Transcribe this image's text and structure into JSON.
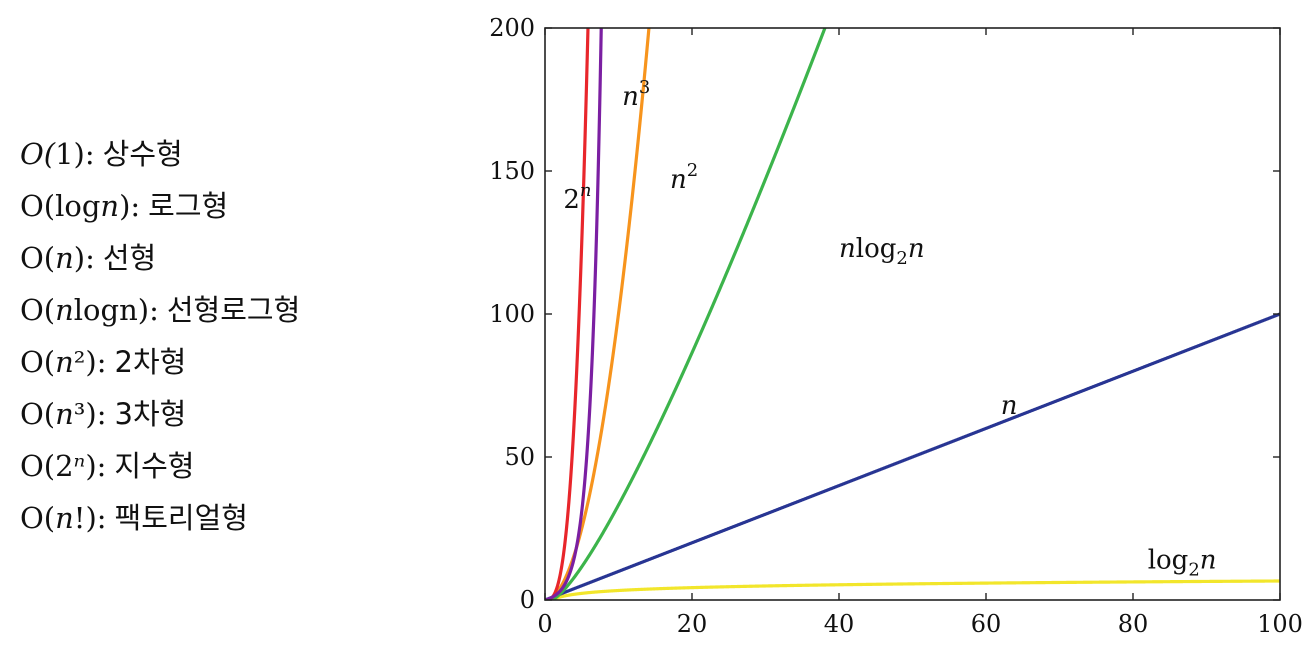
{
  "legend": {
    "items": [
      {
        "notation_prefix": "O(",
        "notation_var": "",
        "notation_rest": "1",
        "notation_suffix": "):",
        "desc": "상수형"
      },
      {
        "notation_prefix": "O(log",
        "notation_var": "n",
        "notation_rest": "",
        "notation_suffix": "):",
        "desc": "로그형"
      },
      {
        "notation_prefix": "O(",
        "notation_var": "n",
        "notation_rest": "",
        "notation_suffix": "):",
        "desc": "선형"
      },
      {
        "notation_prefix": "O(",
        "notation_var": "n",
        "notation_rest": "logn",
        "notation_suffix": "):",
        "desc": "선형로그형"
      },
      {
        "notation_prefix": "O(",
        "notation_var": "n",
        "notation_rest": "²",
        "notation_suffix": "):",
        "desc": "2차형"
      },
      {
        "notation_prefix": "O(",
        "notation_var": "n",
        "notation_rest": "³",
        "notation_suffix": "):",
        "desc": "3차형"
      },
      {
        "notation_prefix": "O(2",
        "notation_var": "ⁿ",
        "notation_rest": "",
        "notation_suffix": "):",
        "desc": "지수형"
      },
      {
        "notation_prefix": "O(",
        "notation_var": "n",
        "notation_rest": "!",
        "notation_suffix": "):",
        "desc": "팩토리얼형"
      }
    ]
  },
  "chart_data": {
    "type": "line",
    "title": "",
    "xlabel": "",
    "ylabel": "",
    "xlim": [
      0,
      100
    ],
    "ylim": [
      0,
      200
    ],
    "xticks": [
      "0",
      "20",
      "40",
      "60",
      "80",
      "100"
    ],
    "yticks": [
      "0",
      "50",
      "100",
      "150",
      "200"
    ],
    "grid": false,
    "series": [
      {
        "name": "log₂n",
        "color": "#f2e62b",
        "fn": "log2n"
      },
      {
        "name": "n",
        "color": "#283593",
        "fn": "n"
      },
      {
        "name": "nlog₂n",
        "color": "#3cb44b",
        "fn": "nlog2n"
      },
      {
        "name": "n²",
        "color": "#f7941d",
        "fn": "n2"
      },
      {
        "name": "n³",
        "color": "#e8262b",
        "fn": "n3"
      },
      {
        "name": "2ⁿ",
        "color": "#7b1fa2",
        "fn": "exp2"
      }
    ],
    "curve_labels": [
      {
        "series": "2ⁿ",
        "base": "2",
        "sup": "n",
        "at": [
          2.5,
          137
        ]
      },
      {
        "series": "n³",
        "base": "n",
        "sup": "3",
        "at": [
          10.5,
          173
        ]
      },
      {
        "series": "n²",
        "base": "n",
        "sup": "2",
        "at": [
          17,
          144
        ]
      },
      {
        "series": "nlog₂n",
        "base": "nlog",
        "sub": "2",
        "tail": "n",
        "at": [
          40,
          120
        ]
      },
      {
        "series": "n",
        "base": "n",
        "at": [
          62,
          65
        ]
      },
      {
        "series": "log₂n",
        "base": "log",
        "sub": "2",
        "tail": "n",
        "at": [
          82,
          11
        ]
      }
    ]
  }
}
